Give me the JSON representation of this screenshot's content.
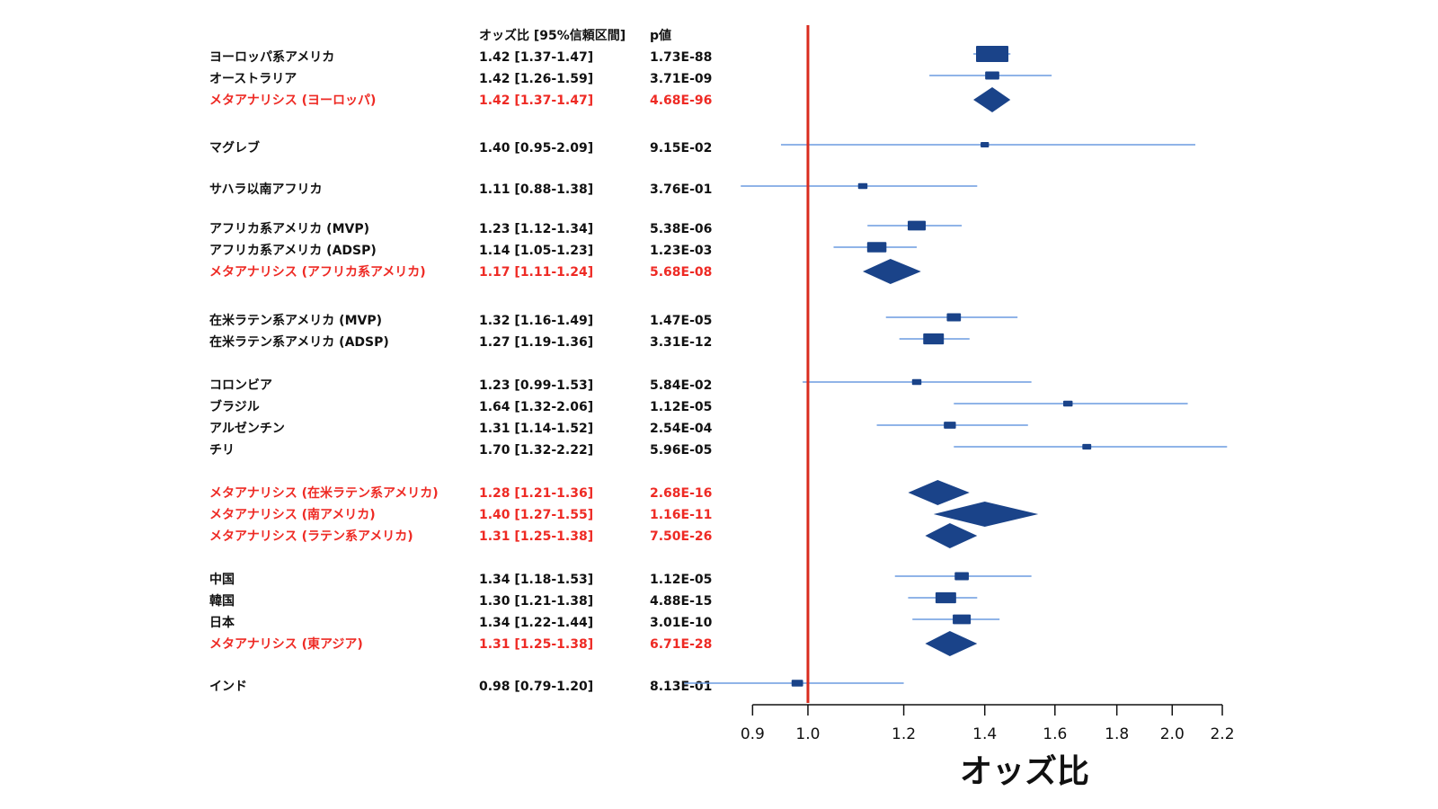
{
  "chart_data": {
    "type": "forest",
    "headers": {
      "or": "オッズ比 [95%信頼区間]",
      "p": "p値"
    },
    "xlabel": "オッズ比",
    "scale": "log",
    "xlim": [
      0.83,
      2.2
    ],
    "ticks": [
      "0.9",
      "1.0",
      "1.2",
      "1.4",
      "1.6",
      "1.8",
      "2.0",
      "2.2"
    ],
    "reference_line": 1.0,
    "colors": {
      "study_text": "#111111",
      "meta_text": "#ee2a24",
      "marker": "#1a4389",
      "ci_line": "#6b9be0",
      "reference": "#d92b1e"
    },
    "rows": [
      {
        "label": "ヨーロッパ系アメリカ",
        "or": 1.42,
        "lo": 1.37,
        "hi": 1.47,
        "ci_text": "1.42 [1.37-1.47]",
        "p_text": "1.73E-88",
        "type": "study",
        "weight": 1.0
      },
      {
        "label": "オーストラリア",
        "or": 1.42,
        "lo": 1.26,
        "hi": 1.59,
        "ci_text": "1.42 [1.26-1.59]",
        "p_text": "3.71E-09",
        "type": "study",
        "weight": 0.3
      },
      {
        "label": "メタアナリシス (ヨーロッパ)",
        "or": 1.42,
        "lo": 1.37,
        "hi": 1.47,
        "ci_text": "1.42 [1.37-1.47]",
        "p_text": "4.68E-96",
        "type": "meta"
      },
      {
        "label": "マグレブ",
        "or": 1.4,
        "lo": 0.95,
        "hi": 2.09,
        "ci_text": "1.40 [0.95-2.09]",
        "p_text": "9.15E-02",
        "type": "study",
        "weight": 0.08
      },
      {
        "label": "サハラ以南アフリカ",
        "or": 1.11,
        "lo": 0.88,
        "hi": 1.38,
        "ci_text": "1.11 [0.88-1.38]",
        "p_text": "3.76E-01",
        "type": "study",
        "weight": 0.12
      },
      {
        "label": "アフリカ系アメリカ (MVP)",
        "or": 1.23,
        "lo": 1.12,
        "hi": 1.34,
        "ci_text": "1.23 [1.12-1.34]",
        "p_text": "5.38E-06",
        "type": "study",
        "weight": 0.45
      },
      {
        "label": "アフリカ系アメリカ (ADSP)",
        "or": 1.14,
        "lo": 1.05,
        "hi": 1.23,
        "ci_text": "1.14 [1.05-1.23]",
        "p_text": "1.23E-03",
        "type": "study",
        "weight": 0.5
      },
      {
        "label": "メタアナリシス (アフリカ系アメリカ)",
        "or": 1.17,
        "lo": 1.11,
        "hi": 1.24,
        "ci_text": "1.17 [1.11-1.24]",
        "p_text": "5.68E-08",
        "type": "meta"
      },
      {
        "label": "在米ラテン系アメリカ (MVP)",
        "or": 1.32,
        "lo": 1.16,
        "hi": 1.49,
        "ci_text": "1.32 [1.16-1.49]",
        "p_text": "1.47E-05",
        "type": "study",
        "weight": 0.3
      },
      {
        "label": "在米ラテン系アメリカ (ADSP)",
        "or": 1.27,
        "lo": 1.19,
        "hi": 1.36,
        "ci_text": "1.27 [1.19-1.36]",
        "p_text": "3.31E-12",
        "type": "study",
        "weight": 0.55
      },
      {
        "label": "コロンビア",
        "or": 1.23,
        "lo": 0.99,
        "hi": 1.53,
        "ci_text": "1.23 [0.99-1.53]",
        "p_text": "5.84E-02",
        "type": "study",
        "weight": 0.12
      },
      {
        "label": "ブラジル",
        "or": 1.64,
        "lo": 1.32,
        "hi": 2.06,
        "ci_text": "1.64 [1.32-2.06]",
        "p_text": "1.12E-05",
        "type": "study",
        "weight": 0.12
      },
      {
        "label": "アルゼンチン",
        "or": 1.31,
        "lo": 1.14,
        "hi": 1.52,
        "ci_text": "1.31 [1.14-1.52]",
        "p_text": "2.54E-04",
        "type": "study",
        "weight": 0.22
      },
      {
        "label": "チリ",
        "or": 1.7,
        "lo": 1.32,
        "hi": 2.22,
        "ci_text": "1.70 [1.32-2.22]",
        "p_text": "5.96E-05",
        "type": "study",
        "weight": 0.1
      },
      {
        "label": "メタアナリシス (在米ラテン系アメリカ)",
        "or": 1.28,
        "lo": 1.21,
        "hi": 1.36,
        "ci_text": "1.28 [1.21-1.36]",
        "p_text": "2.68E-16",
        "type": "meta"
      },
      {
        "label": "メタアナリシス (南アメリカ)",
        "or": 1.4,
        "lo": 1.27,
        "hi": 1.55,
        "ci_text": "1.40 [1.27-1.55]",
        "p_text": "1.16E-11",
        "type": "meta"
      },
      {
        "label": "メタアナリシス (ラテン系アメリカ)",
        "or": 1.31,
        "lo": 1.25,
        "hi": 1.38,
        "ci_text": "1.31 [1.25-1.38]",
        "p_text": "7.50E-26",
        "type": "meta"
      },
      {
        "label": "中国",
        "or": 1.34,
        "lo": 1.18,
        "hi": 1.53,
        "ci_text": "1.34 [1.18-1.53]",
        "p_text": "1.12E-05",
        "type": "study",
        "weight": 0.3
      },
      {
        "label": "韓国",
        "or": 1.3,
        "lo": 1.21,
        "hi": 1.38,
        "ci_text": "1.30 [1.21-1.38]",
        "p_text": "4.88E-15",
        "type": "study",
        "weight": 0.55
      },
      {
        "label": "日本",
        "or": 1.34,
        "lo": 1.22,
        "hi": 1.44,
        "ci_text": "1.34 [1.22-1.44]",
        "p_text": "3.01E-10",
        "type": "study",
        "weight": 0.45
      },
      {
        "label": "メタアナリシス (東アジア)",
        "or": 1.31,
        "lo": 1.25,
        "hi": 1.38,
        "ci_text": "1.31 [1.25-1.38]",
        "p_text": "6.71E-28",
        "type": "meta"
      },
      {
        "label": "インド",
        "or": 0.98,
        "lo": 0.79,
        "hi": 1.2,
        "ci_text": "0.98 [0.79-1.20]",
        "p_text": "8.13E-01",
        "type": "study",
        "weight": 0.2
      }
    ]
  }
}
